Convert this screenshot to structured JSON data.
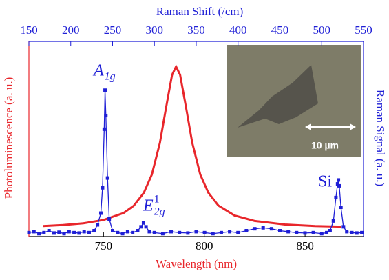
{
  "chart_data": {
    "type": "line",
    "xlabel": "Wavelength (nm)",
    "x2label": "Raman Shift (/cm)",
    "ylabel": "Photoluminescence (a. u.)",
    "y2label": "Raman Signal (a. u.)",
    "xlim": [
      713,
      879
    ],
    "xticks": [
      750,
      800,
      850
    ],
    "x2lim": [
      150,
      550
    ],
    "x2ticks": [
      150,
      200,
      250,
      300,
      350,
      400,
      450,
      500,
      550
    ],
    "ylim": [
      0,
      1
    ],
    "y2lim": [
      0,
      1
    ],
    "series": [
      {
        "color": "#e8262b",
        "axis": "y",
        "x_axis": "x",
        "x": [
          720,
          730,
          740,
          750,
          760,
          765,
          770,
          774,
          778,
          781,
          784,
          786,
          788,
          791,
          794,
          798,
          802,
          807,
          815,
          825,
          840,
          855,
          868
        ],
        "values": [
          0.054,
          0.059,
          0.068,
          0.085,
          0.121,
          0.158,
          0.224,
          0.318,
          0.481,
          0.658,
          0.828,
          0.871,
          0.829,
          0.659,
          0.482,
          0.318,
          0.225,
          0.159,
          0.108,
          0.08,
          0.062,
          0.054,
          0.051
        ]
      },
      {
        "color": "#1f1fd6",
        "axis": "y2",
        "x_axis": "x2",
        "marker": "square",
        "x": [
          150,
          156,
          162,
          168,
          174,
          180,
          186,
          192,
          198,
          204,
          210,
          216,
          222,
          228,
          232,
          236,
          238,
          240,
          241,
          242,
          244,
          246,
          250,
          256,
          262,
          268,
          274,
          280,
          284,
          287,
          290,
          294,
          300,
          310,
          320,
          330,
          340,
          350,
          360,
          370,
          380,
          390,
          400,
          410,
          420,
          430,
          440,
          450,
          460,
          470,
          480,
          490,
          500,
          506,
          510,
          514,
          517,
          519,
          520,
          521,
          523,
          526,
          530,
          536,
          542,
          548
        ],
        "values": [
          0.02,
          0.025,
          0.015,
          0.02,
          0.03,
          0.018,
          0.022,
          0.015,
          0.025,
          0.02,
          0.018,
          0.025,
          0.02,
          0.03,
          0.06,
          0.12,
          0.25,
          0.55,
          0.75,
          0.62,
          0.3,
          0.09,
          0.03,
          0.02,
          0.015,
          0.025,
          0.02,
          0.03,
          0.05,
          0.07,
          0.05,
          0.025,
          0.02,
          0.015,
          0.025,
          0.02,
          0.018,
          0.025,
          0.02,
          0.015,
          0.02,
          0.025,
          0.02,
          0.03,
          0.04,
          0.045,
          0.04,
          0.03,
          0.025,
          0.02,
          0.018,
          0.02,
          0.015,
          0.02,
          0.03,
          0.08,
          0.2,
          0.27,
          0.29,
          0.26,
          0.15,
          0.05,
          0.025,
          0.02,
          0.018,
          0.02
        ]
      }
    ],
    "annotations": [
      {
        "base": "A",
        "sub": "1g"
      },
      {
        "base": "E",
        "sub": "2g",
        "sup": "1"
      },
      {
        "base": "Si"
      }
    ],
    "inset": {
      "scale_label": "10 µm"
    }
  }
}
